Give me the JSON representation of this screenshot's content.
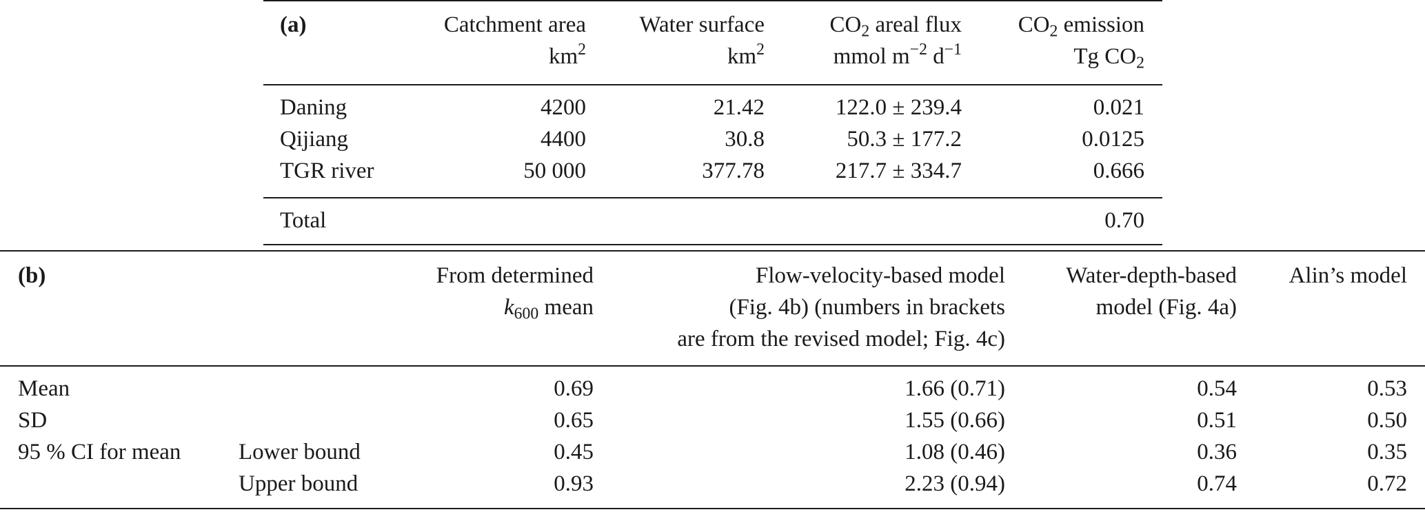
{
  "table_a": {
    "label": "(a)",
    "headers": {
      "catchment": {
        "line1": "Catchment area",
        "unit": "km",
        "unit_sup": "2"
      },
      "water": {
        "line1": "Water surface",
        "unit": "km",
        "unit_sup": "2"
      },
      "flux": {
        "line1_pre": "CO",
        "line1_sub": "2",
        "line1_post": " areal flux",
        "unit_pre": "mmol m",
        "unit_sup1": "−2",
        "unit_mid": " d",
        "unit_sup2": "−1"
      },
      "emission": {
        "line1_pre": "CO",
        "line1_sub": "2",
        "line1_post": " emission",
        "unit_pre": "Tg CO",
        "unit_sub": "2"
      }
    },
    "rows": [
      {
        "name": "Daning",
        "catchment": "4200",
        "water": "21.42",
        "flux": "122.0 ± 239.4",
        "emission": "0.021"
      },
      {
        "name": "Qijiang",
        "catchment": "4400",
        "water": "30.8",
        "flux": "50.3 ± 177.2",
        "emission": "0.0125"
      },
      {
        "name": "TGR river",
        "catchment": "50 000",
        "water": "377.78",
        "flux": "217.7 ± 334.7",
        "emission": "0.666"
      }
    ],
    "total": {
      "label": "Total",
      "value": "0.70"
    }
  },
  "table_b": {
    "label": "(b)",
    "headers": {
      "determined": {
        "line1": "From determined",
        "line2_var": "k",
        "line2_sub": "600",
        "line2_post": " mean"
      },
      "flow": {
        "line1": "Flow-velocity-based model",
        "line2": "(Fig. 4b) (numbers in brackets",
        "line3": "are from the revised model; Fig. 4c)"
      },
      "depth": {
        "line1": "Water-depth-based",
        "line2": "model (Fig. 4a)"
      },
      "alin": {
        "line1": "Alin’s model"
      }
    },
    "rows": [
      {
        "label": "Mean",
        "sublabel": "",
        "determined": "0.69",
        "flow": "1.66 (0.71)",
        "depth": "0.54",
        "alin": "0.53"
      },
      {
        "label": "SD",
        "sublabel": "",
        "determined": "0.65",
        "flow": "1.55 (0.66)",
        "depth": "0.51",
        "alin": "0.50"
      },
      {
        "label": "95 % CI for mean",
        "sublabel": "Lower bound",
        "determined": "0.45",
        "flow": "1.08 (0.46)",
        "depth": "0.36",
        "alin": "0.35"
      },
      {
        "label": "",
        "sublabel": "Upper bound",
        "determined": "0.93",
        "flow": "2.23 (0.94)",
        "depth": "0.74",
        "alin": "0.72"
      }
    ]
  }
}
